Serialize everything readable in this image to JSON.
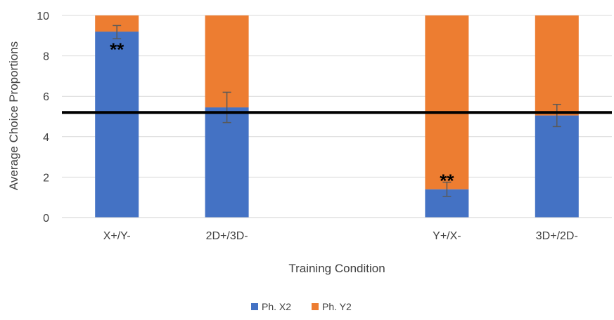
{
  "chart_data": {
    "type": "bar",
    "stacked": true,
    "xlabel": "Training Condition",
    "ylabel": "Average Choice Proportions",
    "ylim": [
      0,
      10
    ],
    "yticks": [
      0,
      2,
      4,
      6,
      8,
      10
    ],
    "categories": [
      "X+/Y-",
      "2D+/3D-",
      "",
      "Y+/X-",
      "3D+/2D-"
    ],
    "series": [
      {
        "name": "Ph. X2",
        "color": "#4472C4",
        "values": [
          9.2,
          5.45,
          null,
          1.4,
          5.05
        ]
      },
      {
        "name": "Ph. Y2",
        "color": "#ED7D31",
        "values": [
          0.8,
          4.55,
          null,
          8.6,
          4.95
        ]
      }
    ],
    "error_bars": [
      {
        "category": "X+/Y-",
        "center": 9.2,
        "low": 8.85,
        "high": 9.5
      },
      {
        "category": "2D+/3D-",
        "center": 5.45,
        "low": 4.7,
        "high": 6.2
      },
      {
        "category": "Y+/X-",
        "center": 1.4,
        "low": 1.05,
        "high": 1.75
      },
      {
        "category": "3D+/2D-",
        "center": 5.05,
        "low": 4.5,
        "high": 5.6
      }
    ],
    "reference_line": {
      "y": 5.2,
      "color": "#000000"
    },
    "annotations": [
      {
        "category": "X+/Y-",
        "y": 8.35,
        "text": "**"
      },
      {
        "category": "Y+/X-",
        "y": 1.85,
        "text": "**"
      }
    ],
    "grid": true,
    "legend_position": "bottom-center"
  }
}
